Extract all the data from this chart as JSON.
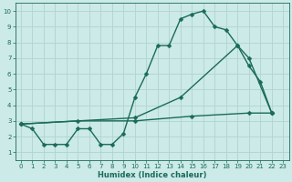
{
  "xlabel": "Humidex (Indice chaleur)",
  "bg_color": "#cceae7",
  "grid_color": "#b0d4d0",
  "line_color": "#1a6b5a",
  "line_width": 1.0,
  "marker": "D",
  "marker_size": 2.5,
  "xlim": [
    -0.5,
    23.5
  ],
  "ylim": [
    0.5,
    10.5
  ],
  "xticks": [
    0,
    1,
    2,
    3,
    4,
    5,
    6,
    7,
    8,
    9,
    10,
    11,
    12,
    13,
    14,
    15,
    16,
    17,
    18,
    19,
    20,
    21,
    22,
    23
  ],
  "yticks": [
    1,
    2,
    3,
    4,
    5,
    6,
    7,
    8,
    9,
    10
  ],
  "series1": [
    [
      0,
      2.8
    ],
    [
      1,
      2.5
    ],
    [
      2,
      1.5
    ],
    [
      3,
      1.5
    ],
    [
      4,
      1.5
    ],
    [
      5,
      2.5
    ],
    [
      6,
      2.5
    ],
    [
      7,
      1.5
    ],
    [
      8,
      1.5
    ],
    [
      9,
      2.2
    ],
    [
      10,
      4.5
    ],
    [
      11,
      6.0
    ],
    [
      12,
      7.8
    ],
    [
      13,
      7.8
    ],
    [
      14,
      9.5
    ],
    [
      15,
      9.8
    ],
    [
      16,
      10.0
    ],
    [
      17,
      9.0
    ],
    [
      18,
      8.8
    ],
    [
      19,
      7.8
    ],
    [
      20,
      6.5
    ],
    [
      21,
      5.5
    ],
    [
      22,
      3.5
    ]
  ],
  "series2": [
    [
      0,
      2.8
    ],
    [
      10,
      3.2
    ],
    [
      14,
      4.5
    ],
    [
      19,
      7.8
    ],
    [
      20,
      7.0
    ],
    [
      22,
      3.5
    ]
  ],
  "series3": [
    [
      0,
      2.8
    ],
    [
      5,
      3.0
    ],
    [
      10,
      3.0
    ],
    [
      15,
      3.3
    ],
    [
      20,
      3.5
    ],
    [
      22,
      3.5
    ]
  ]
}
